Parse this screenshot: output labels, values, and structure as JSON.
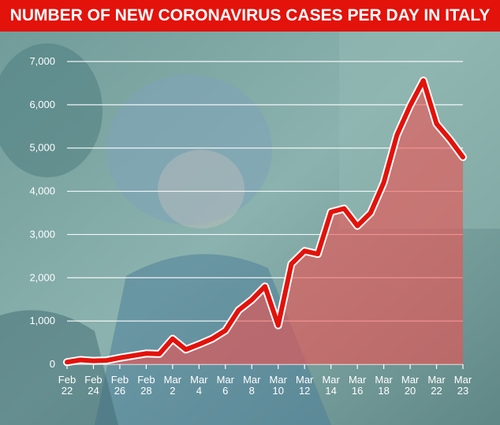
{
  "title": "NUMBER OF NEW CORONAVIRUS CASES PER DAY IN ITALY",
  "colors": {
    "title_bg": "#e3120b",
    "line": "#e3120b",
    "area": "#f05050",
    "grid": "#ffffff",
    "text": "#ffffff"
  },
  "chart_data": {
    "type": "area",
    "title": "NUMBER OF NEW CORONAVIRUS CASES PER DAY IN ITALY",
    "xlabel": "",
    "ylabel": "",
    "ylim": [
      0,
      7000
    ],
    "yticks": [
      0,
      1000,
      2000,
      3000,
      4000,
      5000,
      6000,
      7000
    ],
    "ytick_labels": [
      "0",
      "1,000",
      "2,000",
      "3,000",
      "4,000",
      "5,000",
      "6,000",
      "7,000"
    ],
    "xtick_labels": [
      [
        "Feb",
        "22"
      ],
      [
        "Feb",
        "24"
      ],
      [
        "Feb",
        "26"
      ],
      [
        "Feb",
        "28"
      ],
      [
        "Mar",
        "2"
      ],
      [
        "Mar",
        "4"
      ],
      [
        "Mar",
        "6"
      ],
      [
        "Mar",
        "8"
      ],
      [
        "Mar",
        "10"
      ],
      [
        "Mar",
        "12"
      ],
      [
        "Mar",
        "14"
      ],
      [
        "Mar",
        "16"
      ],
      [
        "Mar",
        "18"
      ],
      [
        "Mar",
        "20"
      ],
      [
        "Mar",
        "22"
      ],
      [
        "Mar",
        "23"
      ]
    ],
    "grid": true,
    "x": [
      "Feb 22",
      "Feb 23",
      "Feb 24",
      "Feb 25",
      "Feb 26",
      "Feb 27",
      "Feb 28",
      "Feb 29",
      "Mar 1",
      "Mar 2",
      "Mar 3",
      "Mar 4",
      "Mar 5",
      "Mar 6",
      "Mar 7",
      "Mar 8",
      "Mar 9",
      "Mar 10",
      "Mar 11",
      "Mar 12",
      "Mar 13",
      "Mar 14",
      "Mar 15",
      "Mar 16",
      "Mar 17",
      "Mar 18",
      "Mar 19",
      "Mar 20",
      "Mar 21",
      "Mar 22",
      "Mar 23"
    ],
    "values": [
      50,
      100,
      80,
      90,
      150,
      200,
      250,
      240,
      590,
      340,
      460,
      590,
      780,
      1250,
      1490,
      1800,
      900,
      2320,
      2620,
      2550,
      3520,
      3600,
      3200,
      3500,
      4200,
      5300,
      5980,
      6560,
      5560,
      5200,
      4790
    ]
  }
}
